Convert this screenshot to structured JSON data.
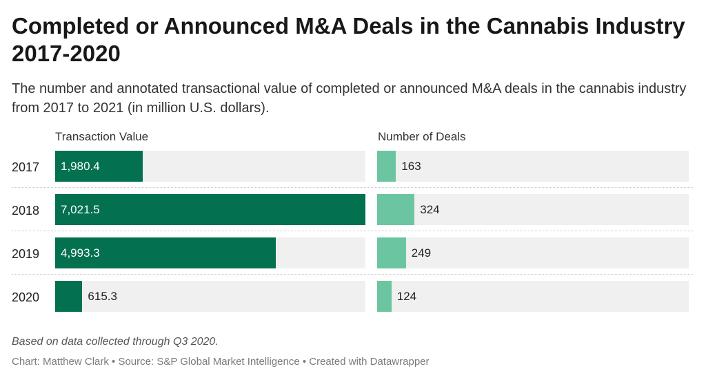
{
  "title": "Completed or Announced M&A Deals in the Cannabis Industry 2017-2020",
  "subtitle": "The number and annotated transactional value of completed or announced M&A deals in the cannabis industry from 2017 to 2021 (in million U.S. dollars).",
  "note": "Based on data collected through Q3 2020.",
  "footer": "Chart: Matthew Clark • Source: S&P Global Market Intelligence • Created with Datawrapper",
  "colors": {
    "value_bar": "#03704f",
    "deals_bar": "#6cc5a1",
    "track": "#f0f0f0"
  },
  "chart_data": {
    "type": "bar",
    "orientation": "horizontal",
    "categories": [
      "2017",
      "2018",
      "2019",
      "2020"
    ],
    "series": [
      {
        "name": "Transaction Value",
        "values": [
          1980.4,
          7021.5,
          4993.3,
          615.3
        ],
        "labels": [
          "1,980.4",
          "7,021.5",
          "4,993.3",
          "615.3"
        ],
        "xlim": [
          0,
          7021.5
        ]
      },
      {
        "name": "Number of Deals",
        "values": [
          163,
          324,
          249,
          124
        ],
        "labels": [
          "163",
          "324",
          "249",
          "124"
        ],
        "xlim": [
          0,
          2700
        ]
      }
    ],
    "grid": false,
    "legend": "none"
  }
}
